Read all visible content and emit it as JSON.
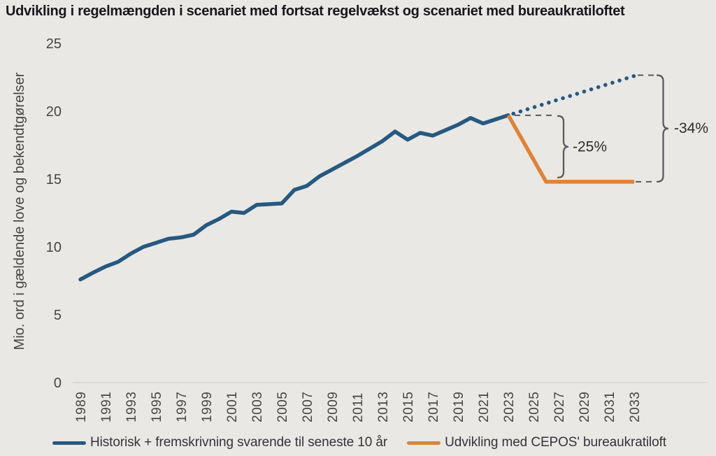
{
  "title": "Udvikling i regelmængden i scenariet med fortsat regelvækst og scenariet med bureaukratiloftet",
  "colors": {
    "historical": "#275880",
    "cepos": "#dd8338",
    "annotation_line": "#5a5a5e",
    "annotation_text": "#2c2c2e",
    "background": "#e9e8e5",
    "baseline": "#d7d6d2",
    "tick_text": "#454545"
  },
  "annotations": [
    {
      "text": "-25%"
    },
    {
      "text": "-34%"
    }
  ],
  "legend": [
    {
      "label": "Historisk + fremskrivning svarende til seneste 10 år",
      "color_key": "historical"
    },
    {
      "label": "Udvikling med CEPOS' bureaukratiloft",
      "color_key": "cepos"
    }
  ],
  "chart_data": {
    "type": "line",
    "title": "Udvikling i regelmængden i scenariet med fortsat regelvækst og scenariet med bureaukratiloftet",
    "xlabel": "",
    "ylabel": "Mio. ord i gældende love og bekendtgørelser",
    "xlim": [
      1989,
      2033
    ],
    "ylim": [
      0,
      25
    ],
    "y_ticks": [
      0,
      5,
      10,
      15,
      20,
      25
    ],
    "x_ticks": [
      1989,
      1991,
      1993,
      1995,
      1997,
      1999,
      2001,
      2003,
      2005,
      2007,
      2009,
      2011,
      2013,
      2015,
      2017,
      2019,
      2021,
      2023,
      2025,
      2027,
      2029,
      2031,
      2033
    ],
    "grid": false,
    "legend_position": "bottom",
    "series": [
      {
        "id": "historical",
        "style": "solid",
        "color": "historical",
        "points": [
          [
            1989,
            7.6
          ],
          [
            1990,
            8.1
          ],
          [
            1991,
            8.55
          ],
          [
            1992,
            8.9
          ],
          [
            1993,
            9.5
          ],
          [
            1994,
            10.0
          ],
          [
            1995,
            10.3
          ],
          [
            1996,
            10.6
          ],
          [
            1997,
            10.7
          ],
          [
            1998,
            10.9
          ],
          [
            1999,
            11.6
          ],
          [
            2000,
            12.05
          ],
          [
            2001,
            12.6
          ],
          [
            2002,
            12.5
          ],
          [
            2003,
            13.1
          ],
          [
            2004,
            13.15
          ],
          [
            2005,
            13.2
          ],
          [
            2006,
            14.2
          ],
          [
            2007,
            14.5
          ],
          [
            2008,
            15.2
          ],
          [
            2009,
            15.7
          ],
          [
            2010,
            16.2
          ],
          [
            2011,
            16.7
          ],
          [
            2012,
            17.25
          ],
          [
            2013,
            17.8
          ],
          [
            2014,
            18.5
          ],
          [
            2015,
            17.9
          ],
          [
            2016,
            18.4
          ],
          [
            2017,
            18.2
          ],
          [
            2018,
            18.6
          ],
          [
            2019,
            19.0
          ],
          [
            2020,
            19.5
          ],
          [
            2021,
            19.1
          ],
          [
            2022,
            19.4
          ],
          [
            2023,
            19.7
          ]
        ]
      },
      {
        "id": "projection",
        "style": "dotted",
        "color": "historical",
        "points": [
          [
            2023.4,
            19.82
          ],
          [
            2033,
            22.6
          ]
        ]
      },
      {
        "id": "cepos",
        "style": "solid",
        "color": "cepos",
        "points": [
          [
            2023,
            19.7
          ],
          [
            2026,
            14.8
          ],
          [
            2033,
            14.8
          ]
        ]
      }
    ]
  }
}
